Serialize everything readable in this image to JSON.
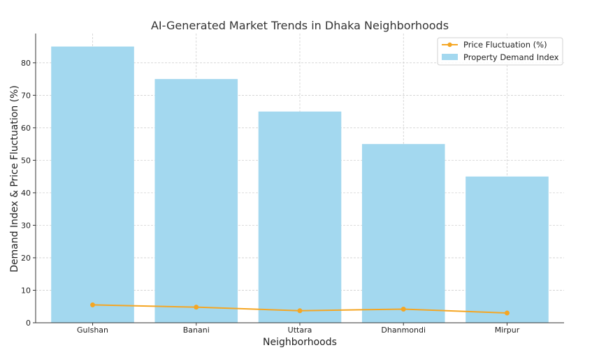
{
  "chart_data": {
    "type": "bar",
    "title": "AI-Generated Market Trends in Dhaka Neighborhoods",
    "xlabel": "Neighborhoods",
    "ylabel": "Demand Index & Price Fluctuation (%)",
    "categories": [
      "Gulshan",
      "Banani",
      "Uttara",
      "Dhanmondi",
      "Mirpur"
    ],
    "ylim": [
      0,
      89
    ],
    "yticks": [
      0,
      10,
      20,
      30,
      40,
      50,
      60,
      70,
      80
    ],
    "grid": true,
    "legend_position": "top-right",
    "series": [
      {
        "name": "Property Demand Index",
        "type": "bar",
        "color": "#a3d8ef",
        "values": [
          85,
          75,
          65,
          55,
          45
        ]
      },
      {
        "name": "Price Fluctuation (%)",
        "type": "line",
        "color": "#f5a623",
        "values": [
          5.5,
          4.8,
          3.7,
          4.2,
          3.0
        ]
      }
    ]
  }
}
